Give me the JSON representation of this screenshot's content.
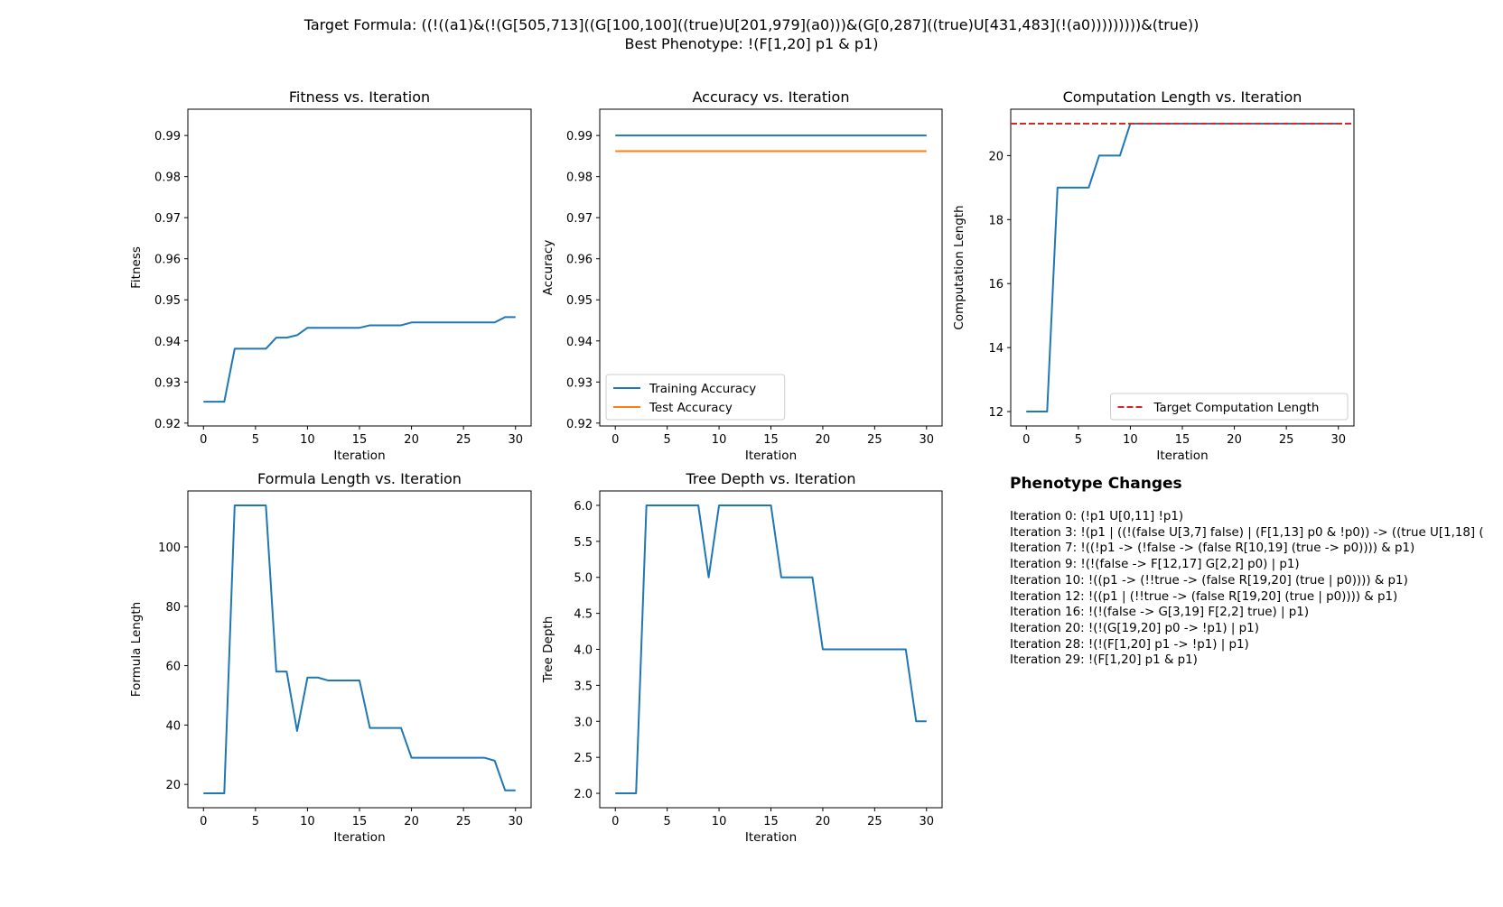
{
  "figure": {
    "target_formula": "Target Formula: ((!((a1)&(!(G[505,713]((G[100,100]((true)U[201,979](a0)))&(G[0,287]((true)U[431,483](!(a0)))))))))&(true))",
    "best_phenotype": "Best Phenotype: !(F[1,20] p1 & p1)"
  },
  "colors": {
    "blue": "#1f77b4",
    "orange": "#ff7f0e",
    "red": "#d62728"
  },
  "chart_data": [
    {
      "type": "line",
      "title": "Fitness vs. Iteration",
      "xlabel": "Iteration",
      "ylabel": "Fitness",
      "xlim": [
        -1.5,
        31.5
      ],
      "ylim": [
        0.9193,
        0.9964
      ],
      "xticks": [
        0,
        5,
        10,
        15,
        20,
        25,
        30
      ],
      "yticks": [
        0.92,
        0.93,
        0.94,
        0.95,
        0.96,
        0.97,
        0.98,
        0.99
      ],
      "ytick_format": "2",
      "series": [
        {
          "color": "#1f77b4",
          "style": "solid",
          "x": [
            0,
            1,
            2,
            3,
            4,
            5,
            6,
            7,
            8,
            9,
            10,
            11,
            12,
            13,
            14,
            15,
            16,
            17,
            18,
            19,
            20,
            21,
            22,
            23,
            24,
            25,
            26,
            27,
            28,
            29,
            30
          ],
          "y": [
            0.9252,
            0.9252,
            0.9252,
            0.9381,
            0.9381,
            0.9381,
            0.9381,
            0.9408,
            0.9408,
            0.9414,
            0.9432,
            0.9432,
            0.9432,
            0.9432,
            0.9432,
            0.9432,
            0.9438,
            0.9438,
            0.9438,
            0.9438,
            0.9445,
            0.9445,
            0.9445,
            0.9445,
            0.9445,
            0.9445,
            0.9445,
            0.9445,
            0.9445,
            0.9458,
            0.9458
          ]
        }
      ]
    },
    {
      "type": "line",
      "title": "Accuracy vs. Iteration",
      "xlabel": "Iteration",
      "ylabel": "Accuracy",
      "xlim": [
        -1.5,
        31.5
      ],
      "ylim": [
        0.9193,
        0.9964
      ],
      "xticks": [
        0,
        5,
        10,
        15,
        20,
        25,
        30
      ],
      "yticks": [
        0.92,
        0.93,
        0.94,
        0.95,
        0.96,
        0.97,
        0.98,
        0.99
      ],
      "ytick_format": "2",
      "legend": "lower-left",
      "series": [
        {
          "name": "Training Accuracy",
          "color": "#1f77b4",
          "style": "solid",
          "x": [
            0,
            30
          ],
          "y": [
            0.99,
            0.99
          ]
        },
        {
          "name": "Test Accuracy",
          "color": "#ff7f0e",
          "style": "solid",
          "x": [
            0,
            30
          ],
          "y": [
            0.9862,
            0.9862
          ]
        }
      ]
    },
    {
      "type": "line",
      "title": "Computation Length vs. Iteration",
      "xlabel": "Iteration",
      "ylabel": "Computation Length",
      "xlim": [
        -1.5,
        31.5
      ],
      "ylim": [
        11.55,
        21.45
      ],
      "xticks": [
        0,
        5,
        10,
        15,
        20,
        25,
        30
      ],
      "yticks": [
        12,
        14,
        16,
        18,
        20
      ],
      "ytick_format": "0",
      "legend": "lower-right",
      "series": [
        {
          "color": "#1f77b4",
          "style": "solid",
          "x": [
            0,
            1,
            2,
            3,
            4,
            5,
            6,
            7,
            8,
            9,
            10,
            11,
            12,
            13,
            14,
            15,
            16,
            17,
            18,
            19,
            20,
            21,
            22,
            23,
            24,
            25,
            26,
            27,
            28,
            29,
            30
          ],
          "y": [
            12,
            12,
            12,
            19,
            19,
            19,
            19,
            20,
            20,
            20,
            21,
            21,
            21,
            21,
            21,
            21,
            21,
            21,
            21,
            21,
            21,
            21,
            21,
            21,
            21,
            21,
            21,
            21,
            21,
            21,
            21
          ]
        },
        {
          "name": "Target Computation Length",
          "color": "#d62728",
          "style": "dashed",
          "hline": true,
          "x": [
            -1.5,
            31.5
          ],
          "y": [
            21,
            21
          ]
        }
      ]
    },
    {
      "type": "line",
      "title": "Formula Length vs. Iteration",
      "xlabel": "Iteration",
      "ylabel": "Formula Length",
      "xlim": [
        -1.5,
        31.5
      ],
      "ylim": [
        12.15,
        118.85
      ],
      "xticks": [
        0,
        5,
        10,
        15,
        20,
        25,
        30
      ],
      "yticks": [
        20,
        40,
        60,
        80,
        100
      ],
      "ytick_format": "0",
      "series": [
        {
          "color": "#1f77b4",
          "style": "solid",
          "x": [
            0,
            1,
            2,
            3,
            4,
            5,
            6,
            7,
            8,
            9,
            10,
            11,
            12,
            13,
            14,
            15,
            16,
            17,
            18,
            19,
            20,
            21,
            22,
            23,
            24,
            25,
            26,
            27,
            28,
            29,
            30
          ],
          "y": [
            17,
            17,
            17,
            114,
            114,
            114,
            114,
            58,
            58,
            38,
            56,
            56,
            55,
            55,
            55,
            55,
            39,
            39,
            39,
            39,
            29,
            29,
            29,
            29,
            29,
            29,
            29,
            29,
            28,
            18,
            18
          ]
        }
      ]
    },
    {
      "type": "line",
      "title": "Tree Depth vs. Iteration",
      "xlabel": "Iteration",
      "ylabel": "Tree Depth",
      "xlim": [
        -1.5,
        31.5
      ],
      "ylim": [
        1.8,
        6.2
      ],
      "xticks": [
        0,
        5,
        10,
        15,
        20,
        25,
        30
      ],
      "yticks": [
        2.0,
        2.5,
        3.0,
        3.5,
        4.0,
        4.5,
        5.0,
        5.5,
        6.0
      ],
      "ytick_format": "1",
      "series": [
        {
          "color": "#1f77b4",
          "style": "solid",
          "x": [
            0,
            1,
            2,
            3,
            4,
            5,
            6,
            7,
            8,
            9,
            10,
            11,
            12,
            13,
            14,
            15,
            16,
            17,
            18,
            19,
            20,
            21,
            22,
            23,
            24,
            25,
            26,
            27,
            28,
            29,
            30
          ],
          "y": [
            2,
            2,
            2,
            6,
            6,
            6,
            6,
            6,
            6,
            5,
            6,
            6,
            6,
            6,
            6,
            6,
            5,
            5,
            5,
            5,
            4,
            4,
            4,
            4,
            4,
            4,
            4,
            4,
            4,
            3,
            3
          ]
        }
      ]
    }
  ],
  "phenotype_changes": {
    "title": "Phenotype Changes",
    "items": [
      "Iteration 0: (!p1 U[0,11] !p1)",
      "Iteration 3: !(p1 | ((!(false U[3,7] false) | (F[1,13] p0 & !p0)) -> ((true U[1,18] (",
      "Iteration 7: !((!p1 -> (!false -> (false R[10,19] (true -> p0)))) & p1)",
      "Iteration 9: !(!(false -> F[12,17] G[2,2] p0) | p1)",
      "Iteration 10: !((p1 -> (!!true -> (false R[19,20] (true | p0)))) & p1)",
      "Iteration 12: !((p1 | (!!true -> (false R[19,20] (true | p0)))) & p1)",
      "Iteration 16: !(!(false -> G[3,19] F[2,2] true) | p1)",
      "Iteration 20: !(!(G[19,20] p0 -> !p1) | p1)",
      "Iteration 28: !(!(F[1,20] p1 -> !p1) | p1)",
      "Iteration 29: !(F[1,20] p1 & p1)"
    ]
  }
}
